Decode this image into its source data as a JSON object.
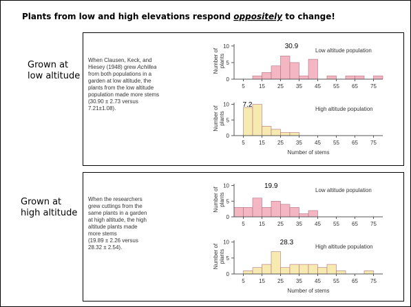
{
  "header": {
    "title_before": "Plants from low and high elevations respond",
    "title_emphasis": "oppositely",
    "title_after": "to change!"
  },
  "panels": [
    {
      "side_label": [
        "Grown at",
        "low altitude"
      ],
      "text_lines": [
        "When Clausen, Keck, and",
        "Hiesey (1948) grew",
        "from both populations in a",
        "garden at low altitude, the",
        "plants from the low altitude",
        "population made more stems",
        "(30.90 ± 2.73 versus",
        "7.21±1.08)."
      ],
      "italic_word": "Achillea"
    },
    {
      "side_label": [
        "Grown at",
        "high altitude"
      ],
      "text_lines": [
        "When the researchers",
        "grew cuttings from the",
        "same plants in a garden",
        "at high altitude, the high",
        "altitude plants made",
        "more stems",
        "(19.89 ± 2.26 versus",
        "28.32 ± 2.54)."
      ]
    }
  ],
  "chart_data": [
    {
      "type": "histogram",
      "ylabel": [
        "Number of",
        "plants"
      ],
      "annotation": 30.9,
      "bins": [
        0,
        5,
        10,
        15,
        20,
        25,
        30,
        35,
        40,
        45,
        50,
        55,
        60,
        65,
        70,
        75,
        80
      ],
      "series": [
        {
          "name": "Low altitude population",
          "color": "#f4b6c2",
          "values": [
            0,
            0,
            1,
            2,
            4,
            7,
            5,
            1,
            6,
            0,
            1,
            0,
            1,
            1,
            0,
            1
          ]
        }
      ],
      "xlim": [
        0,
        80
      ],
      "xticks": [
        5,
        15,
        25,
        35,
        45,
        55,
        65,
        75
      ],
      "ylim": [
        0,
        11
      ],
      "yticks": [
        0,
        5,
        10
      ]
    },
    {
      "type": "histogram",
      "ylabel": [
        "Number of",
        "plants"
      ],
      "annotation": 7.2,
      "xlabel": "Number of stems",
      "bins": [
        0,
        5,
        10,
        15,
        20,
        25,
        30,
        35,
        40,
        45,
        50,
        55,
        60,
        65,
        70,
        75,
        80
      ],
      "series": [
        {
          "name": "High altitude population",
          "color": "#f7eab0",
          "values": [
            0,
            9,
            10,
            3,
            2,
            1,
            1,
            0,
            0,
            0,
            0,
            0,
            0,
            0,
            0,
            0
          ]
        }
      ],
      "xlim": [
        0,
        80
      ],
      "xticks": [
        5,
        15,
        25,
        35,
        45,
        55,
        65,
        75
      ],
      "ylim": [
        0,
        11
      ],
      "yticks": [
        0,
        5,
        10
      ]
    },
    {
      "type": "histogram",
      "ylabel": [
        "Number of",
        "plants"
      ],
      "annotation": 19.9,
      "bins": [
        0,
        5,
        10,
        15,
        20,
        25,
        30,
        35,
        40,
        45,
        50,
        55,
        60,
        65,
        70,
        75,
        80
      ],
      "series": [
        {
          "name": "Low altitude population",
          "color": "#f4b6c2",
          "values": [
            3,
            3,
            6,
            3,
            5,
            4,
            3,
            1,
            2,
            0,
            0,
            0,
            0,
            0,
            0,
            0
          ]
        }
      ],
      "xlim": [
        0,
        80
      ],
      "xticks": [
        5,
        15,
        25,
        35,
        45,
        55,
        65,
        75
      ],
      "ylim": [
        0,
        11
      ],
      "yticks": [
        0,
        5,
        10
      ]
    },
    {
      "type": "histogram",
      "ylabel": [
        "Number of",
        "plants"
      ],
      "annotation": 28.3,
      "xlabel": "Number of stems",
      "bins": [
        0,
        5,
        10,
        15,
        20,
        25,
        30,
        35,
        40,
        45,
        50,
        55,
        60,
        65,
        70,
        75,
        80
      ],
      "series": [
        {
          "name": "High altitude population",
          "color": "#f7eab0",
          "values": [
            0,
            1,
            2,
            3,
            7,
            2,
            3,
            3,
            3,
            2,
            3,
            1,
            0,
            0,
            1,
            0
          ]
        }
      ],
      "xlim": [
        0,
        80
      ],
      "xticks": [
        5,
        15,
        25,
        35,
        45,
        55,
        65,
        75
      ],
      "ylim": [
        0,
        11
      ],
      "yticks": [
        0,
        5,
        10
      ]
    }
  ]
}
